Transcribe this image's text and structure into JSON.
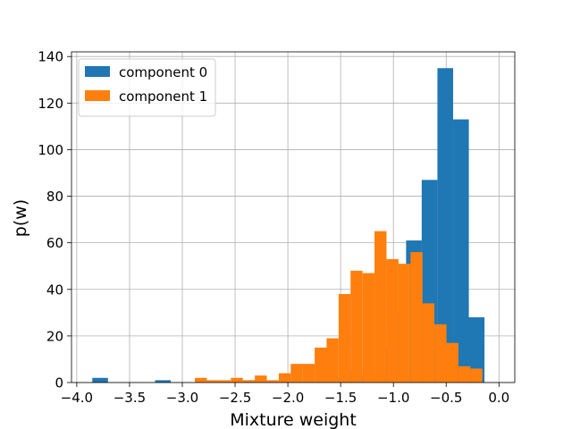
{
  "chart_data": {
    "type": "bar",
    "title": "",
    "xlabel": "Mixture weight",
    "ylabel": "p(w)",
    "xlim": [
      -4.05,
      0.15
    ],
    "ylim": [
      0,
      142
    ],
    "x_ticks": [
      -4.0,
      -3.5,
      -3.0,
      -2.5,
      -2.0,
      -1.5,
      -1.0,
      -0.5,
      0.0
    ],
    "x_tick_labels": [
      "−4.0",
      "−3.5",
      "−3.0",
      "−2.5",
      "−2.0",
      "−1.5",
      "−1.0",
      "−0.5",
      "0.0"
    ],
    "y_ticks": [
      0,
      20,
      40,
      60,
      80,
      100,
      120,
      140
    ],
    "y_tick_labels": [
      "0",
      "20",
      "40",
      "60",
      "80",
      "100",
      "120",
      "140"
    ],
    "grid": true,
    "legend_position": "top-left",
    "series": [
      {
        "name": "component 0",
        "color": "#1f77b4",
        "bin_width": 0.1486,
        "bins": [
          {
            "x0": -3.853,
            "count": 2
          },
          {
            "x0": -3.704,
            "count": 0
          },
          {
            "x0": -3.555,
            "count": 0
          },
          {
            "x0": -3.407,
            "count": 0
          },
          {
            "x0": -3.258,
            "count": 1
          },
          {
            "x0": -3.11,
            "count": 0
          },
          {
            "x0": -2.961,
            "count": 0
          },
          {
            "x0": -2.812,
            "count": 0
          },
          {
            "x0": -2.664,
            "count": 0
          },
          {
            "x0": -2.515,
            "count": 0
          },
          {
            "x0": -2.366,
            "count": 1
          },
          {
            "x0": -2.218,
            "count": 0
          },
          {
            "x0": -2.069,
            "count": 0
          },
          {
            "x0": -1.921,
            "count": 0
          },
          {
            "x0": -1.772,
            "count": 0
          },
          {
            "x0": -1.623,
            "count": 2
          },
          {
            "x0": -1.475,
            "count": 5
          },
          {
            "x0": -1.326,
            "count": 3
          },
          {
            "x0": -1.177,
            "count": 15
          },
          {
            "x0": -1.029,
            "count": 30
          },
          {
            "x0": -0.88,
            "count": 61
          },
          {
            "x0": -0.732,
            "count": 87
          },
          {
            "x0": -0.583,
            "count": 135
          },
          {
            "x0": -0.434,
            "count": 113
          },
          {
            "x0": -0.286,
            "count": 28
          }
        ]
      },
      {
        "name": "component 1",
        "color": "#ff7f0e",
        "bin_width": 0.1135,
        "bins": [
          {
            "x0": -2.881,
            "count": 2
          },
          {
            "x0": -2.767,
            "count": 1
          },
          {
            "x0": -2.654,
            "count": 1
          },
          {
            "x0": -2.54,
            "count": 2
          },
          {
            "x0": -2.427,
            "count": 1
          },
          {
            "x0": -2.313,
            "count": 3
          },
          {
            "x0": -2.2,
            "count": 1
          },
          {
            "x0": -2.086,
            "count": 4
          },
          {
            "x0": -1.973,
            "count": 8
          },
          {
            "x0": -1.86,
            "count": 8
          },
          {
            "x0": -1.746,
            "count": 15
          },
          {
            "x0": -1.633,
            "count": 19
          },
          {
            "x0": -1.519,
            "count": 38
          },
          {
            "x0": -1.406,
            "count": 48
          },
          {
            "x0": -1.292,
            "count": 47
          },
          {
            "x0": -1.179,
            "count": 65
          },
          {
            "x0": -1.065,
            "count": 53
          },
          {
            "x0": -0.952,
            "count": 51
          },
          {
            "x0": -0.838,
            "count": 56
          },
          {
            "x0": -0.725,
            "count": 34
          },
          {
            "x0": -0.611,
            "count": 25
          },
          {
            "x0": -0.498,
            "count": 17
          },
          {
            "x0": -0.384,
            "count": 7
          },
          {
            "x0": -0.271,
            "count": 6
          }
        ]
      }
    ]
  }
}
